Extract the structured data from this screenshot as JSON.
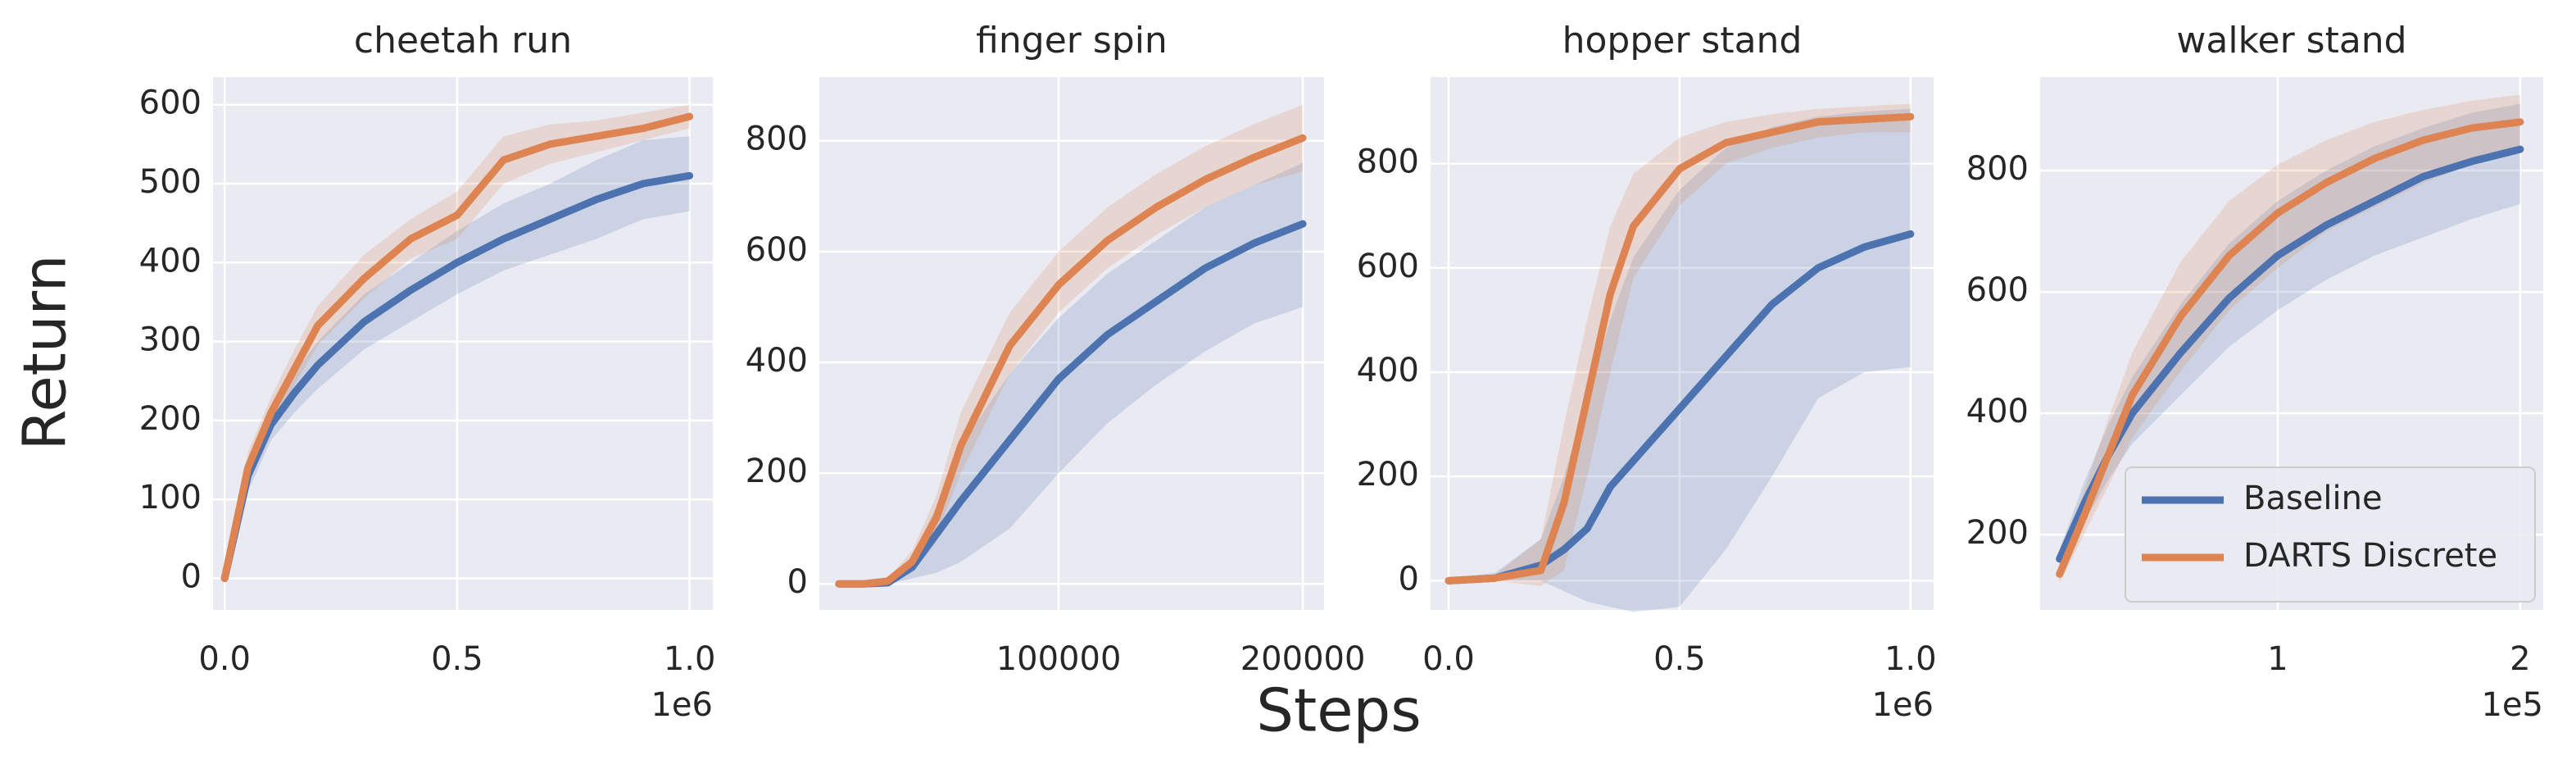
{
  "xlabel": "Steps",
  "ylabel": "Return",
  "chart_data": [
    {
      "type": "line",
      "title": "cheetah run",
      "x_offset_label": "1e6",
      "x": [
        0,
        0.05,
        0.1,
        0.15,
        0.2,
        0.3,
        0.4,
        0.5,
        0.6,
        0.7,
        0.8,
        0.9,
        1.0
      ],
      "xlim": [
        -0.025,
        1.05
      ],
      "xticks": [
        {
          "value": 0,
          "label": "0.0"
        },
        {
          "value": 0.5,
          "label": "0.5"
        },
        {
          "value": 1,
          "label": "1.0"
        }
      ],
      "ylim": [
        -40,
        635
      ],
      "yticks": [
        0,
        100,
        200,
        300,
        400,
        500,
        600
      ],
      "grid": true,
      "series": [
        {
          "name": "Baseline",
          "color": "#4c72b0",
          "values": [
            0,
            130,
            195,
            235,
            270,
            325,
            365,
            400,
            430,
            455,
            480,
            500,
            510
          ],
          "lower": [
            0,
            110,
            175,
            210,
            240,
            290,
            325,
            360,
            390,
            410,
            430,
            455,
            465
          ],
          "upper": [
            0,
            150,
            215,
            260,
            300,
            360,
            400,
            440,
            475,
            500,
            530,
            555,
            560
          ]
        },
        {
          "name": "DARTS Discrete",
          "color": "#dd8452",
          "values": [
            0,
            140,
            210,
            265,
            320,
            380,
            430,
            460,
            530,
            550,
            560,
            570,
            585
          ],
          "lower": [
            0,
            120,
            190,
            245,
            295,
            355,
            405,
            430,
            500,
            525,
            540,
            555,
            570
          ],
          "upper": [
            0,
            160,
            230,
            290,
            345,
            410,
            455,
            490,
            560,
            575,
            580,
            590,
            600
          ]
        }
      ]
    },
    {
      "type": "line",
      "title": "finger spin",
      "x": [
        10000,
        20000,
        30000,
        40000,
        50000,
        60000,
        80000,
        100000,
        120000,
        140000,
        160000,
        180000,
        200000
      ],
      "xlim": [
        2000,
        208700
      ],
      "xticks": [
        100000,
        200000
      ],
      "ylim": [
        -47,
        915
      ],
      "yticks": [
        0,
        200,
        400,
        600,
        800
      ],
      "grid": true,
      "series": [
        {
          "name": "Baseline",
          "color": "#4c72b0",
          "values": [
            0,
            0,
            2,
            30,
            90,
            150,
            260,
            370,
            450,
            510,
            570,
            615,
            650
          ],
          "lower": [
            0,
            0,
            0,
            10,
            20,
            40,
            100,
            200,
            290,
            360,
            420,
            470,
            500
          ],
          "upper": [
            0,
            0,
            5,
            50,
            140,
            250,
            380,
            480,
            560,
            620,
            680,
            720,
            760
          ]
        },
        {
          "name": "DARTS Discrete",
          "color": "#dd8452",
          "values": [
            0,
            0,
            5,
            40,
            120,
            250,
            430,
            540,
            620,
            680,
            730,
            770,
            805
          ],
          "lower": [
            0,
            0,
            2,
            25,
            90,
            200,
            380,
            490,
            570,
            630,
            680,
            720,
            745
          ],
          "upper": [
            0,
            0,
            10,
            60,
            160,
            310,
            490,
            600,
            680,
            740,
            790,
            830,
            865
          ]
        }
      ]
    },
    {
      "type": "line",
      "title": "hopper stand",
      "x_offset_label": "1e6",
      "x": [
        0,
        0.1,
        0.2,
        0.25,
        0.3,
        0.35,
        0.4,
        0.5,
        0.6,
        0.7,
        0.8,
        0.9,
        1.0
      ],
      "xlim": [
        -0.039,
        1.05
      ],
      "xticks": [
        {
          "value": 0,
          "label": "0.0"
        },
        {
          "value": 0.5,
          "label": "0.5"
        },
        {
          "value": 1,
          "label": "1.0"
        }
      ],
      "ylim": [
        -56,
        966
      ],
      "yticks": [
        0,
        200,
        400,
        600,
        800
      ],
      "grid": true,
      "series": [
        {
          "name": "Baseline",
          "color": "#4c72b0",
          "values": [
            0,
            5,
            30,
            60,
            100,
            180,
            230,
            330,
            430,
            530,
            600,
            640,
            665
          ],
          "lower": [
            -5,
            0,
            0,
            -20,
            -40,
            -50,
            -60,
            -50,
            60,
            200,
            350,
            400,
            410
          ],
          "upper": [
            5,
            15,
            80,
            200,
            350,
            500,
            620,
            750,
            830,
            870,
            890,
            900,
            905
          ]
        },
        {
          "name": "DARTS Discrete",
          "color": "#dd8452",
          "values": [
            0,
            5,
            20,
            150,
            350,
            550,
            680,
            790,
            840,
            860,
            880,
            885,
            890
          ],
          "lower": [
            -5,
            0,
            -10,
            20,
            200,
            400,
            580,
            720,
            800,
            830,
            850,
            860,
            860
          ],
          "upper": [
            5,
            10,
            80,
            300,
            500,
            680,
            780,
            850,
            880,
            895,
            905,
            910,
            915
          ]
        }
      ]
    },
    {
      "type": "line",
      "title": "walker stand",
      "x_offset_label": "1e5",
      "legend": "lower right",
      "x": [
        0.1,
        0.2,
        0.3,
        0.4,
        0.6,
        0.8,
        1.0,
        1.2,
        1.4,
        1.6,
        1.8,
        2.0
      ],
      "xlim": [
        0.02,
        2.095
      ],
      "xticks": [
        1,
        2
      ],
      "ylim": [
        76,
        954
      ],
      "yticks": [
        200,
        400,
        600,
        800
      ],
      "grid": true,
      "series": [
        {
          "name": "Baseline",
          "color": "#4c72b0",
          "values": [
            160,
            250,
            330,
            400,
            500,
            590,
            660,
            710,
            750,
            790,
            815,
            835
          ],
          "lower": [
            150,
            220,
            290,
            350,
            430,
            510,
            570,
            620,
            660,
            690,
            720,
            745
          ],
          "upper": [
            175,
            285,
            380,
            460,
            580,
            680,
            750,
            800,
            840,
            870,
            895,
            910
          ]
        },
        {
          "name": "DARTS Discrete",
          "color": "#dd8452",
          "values": [
            135,
            230,
            330,
            430,
            560,
            660,
            730,
            780,
            820,
            850,
            870,
            880
          ],
          "lower": [
            120,
            200,
            280,
            360,
            470,
            570,
            640,
            700,
            740,
            780,
            810,
            830
          ],
          "upper": [
            150,
            270,
            390,
            500,
            650,
            750,
            810,
            850,
            880,
            900,
            915,
            925
          ]
        }
      ]
    }
  ]
}
